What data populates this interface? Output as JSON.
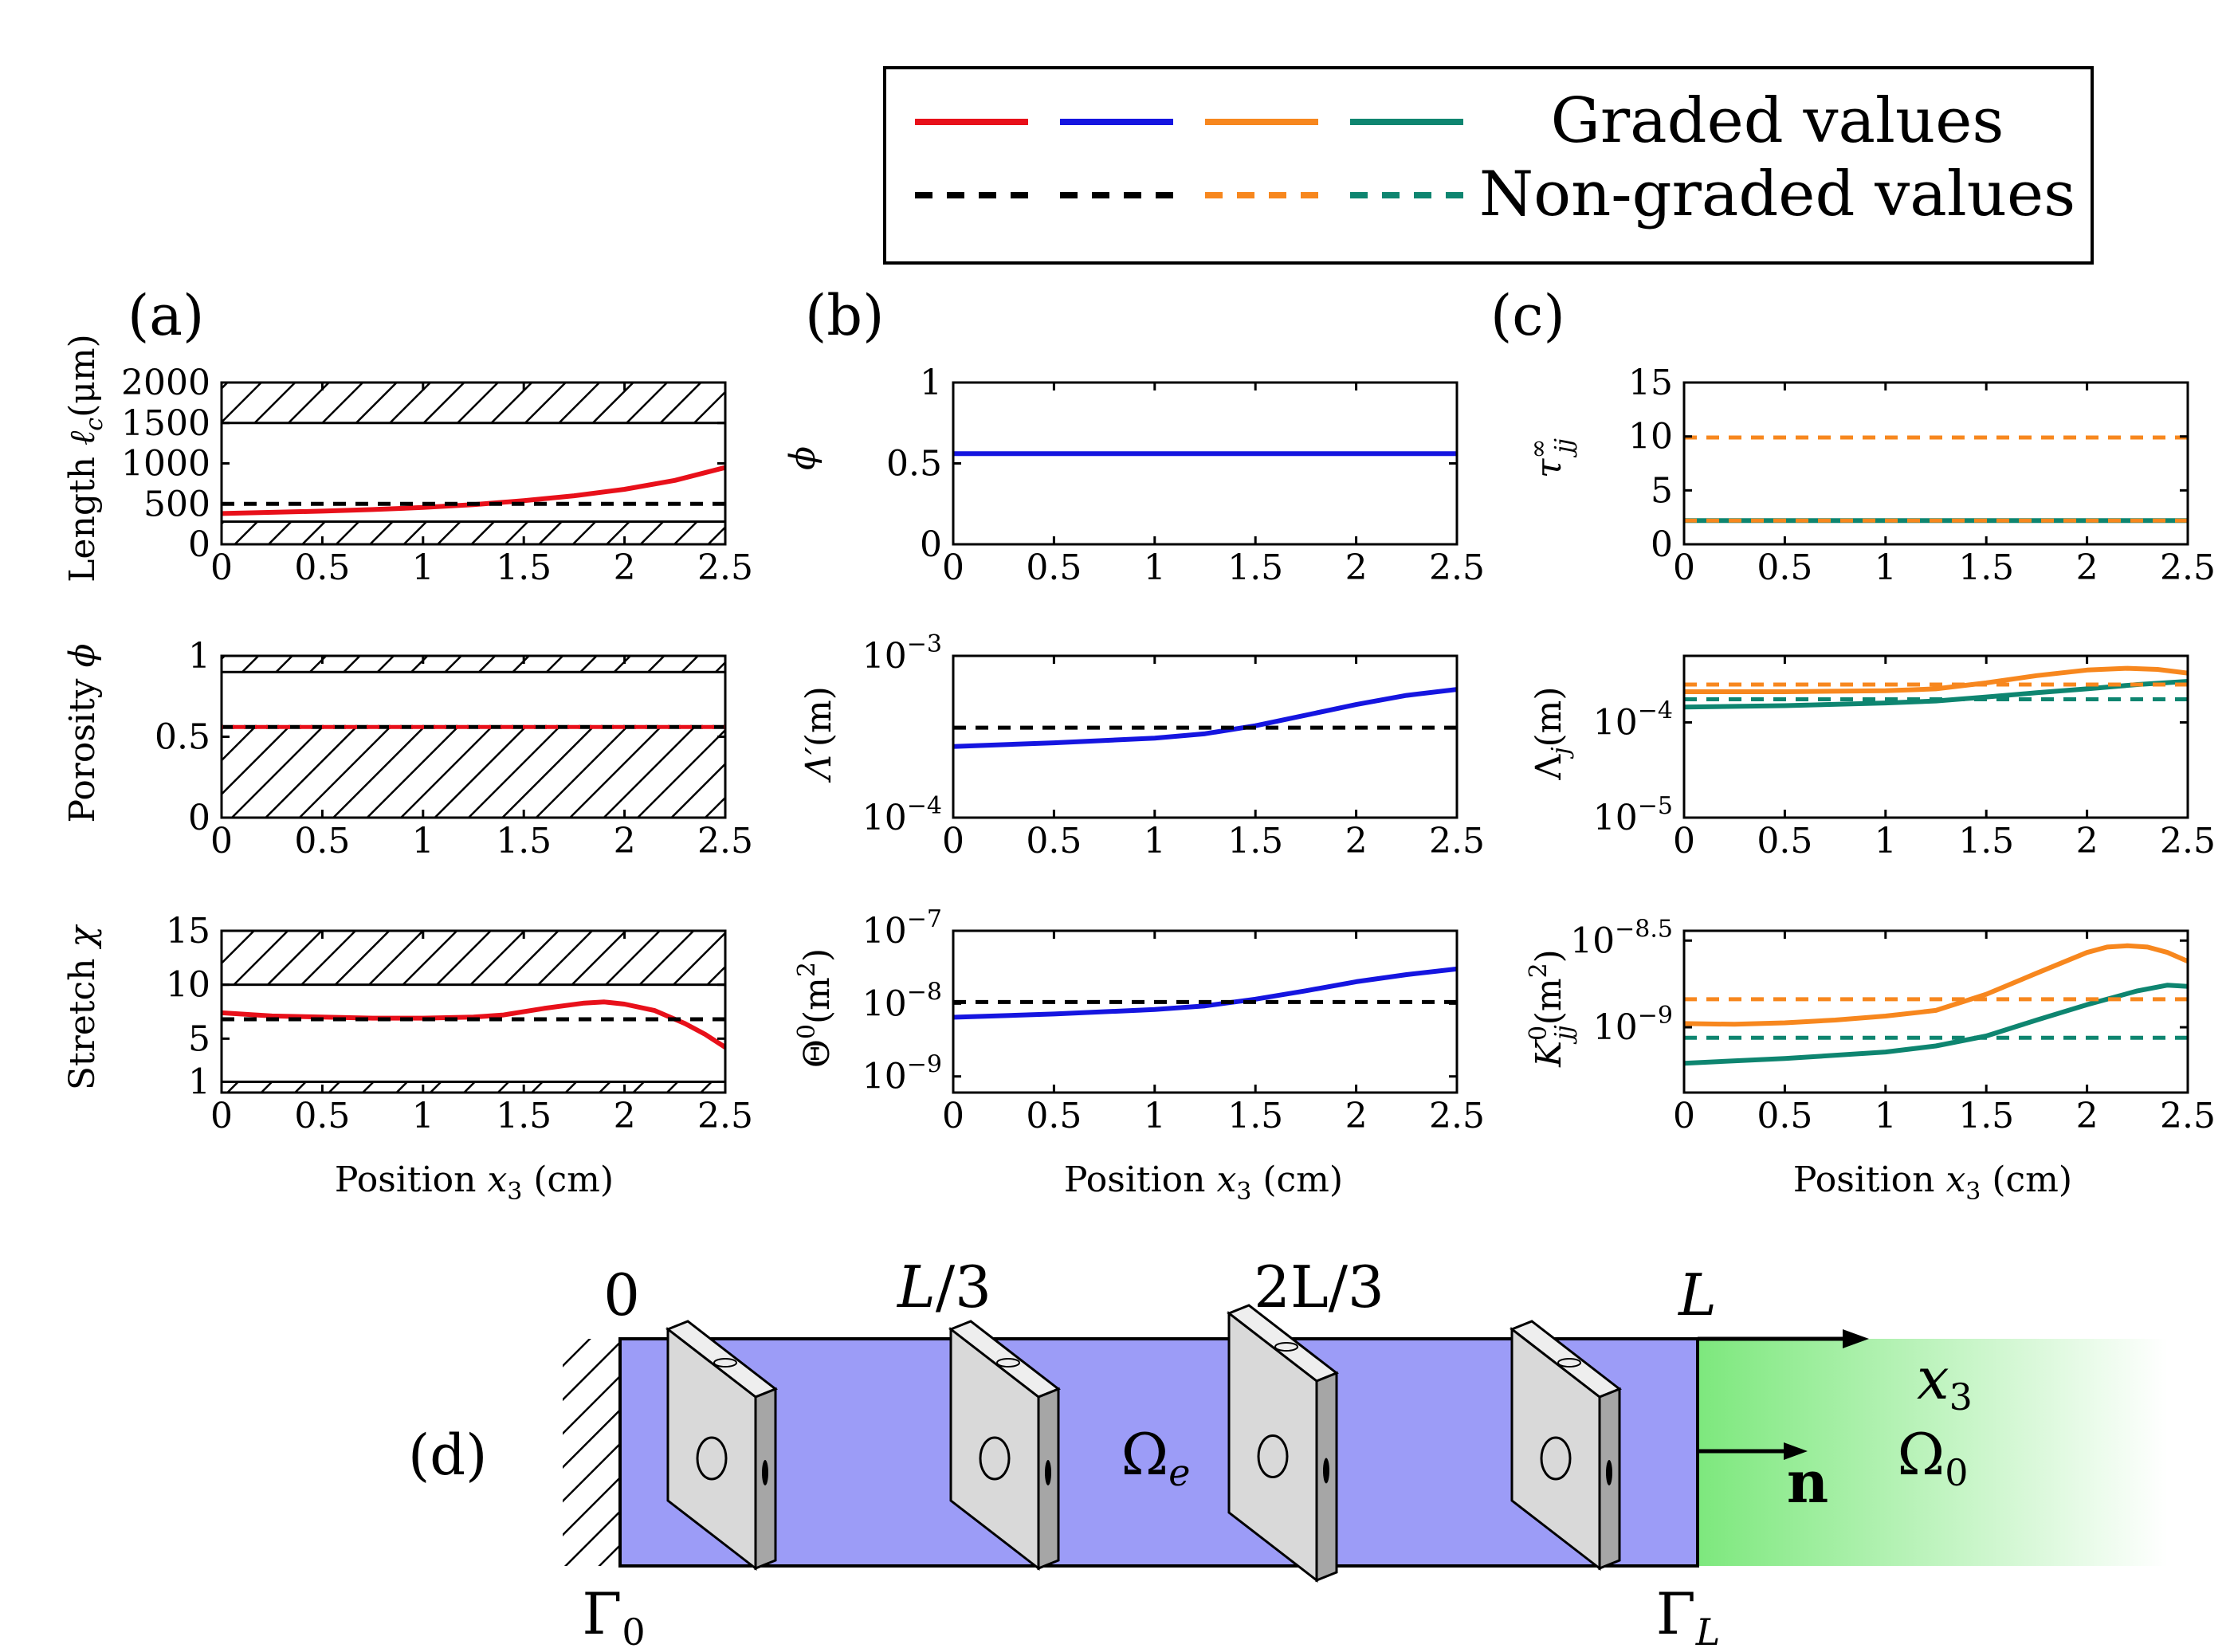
{
  "legend": {
    "graded": "Graded values",
    "nongraded": "Non-graded values",
    "colors": {
      "red": "#e8101a",
      "blue": "#1515e0",
      "orange": "#f7871e",
      "teal": "#0e8570",
      "black": "#000000"
    }
  },
  "panel_labels": {
    "a": "(a)",
    "b": "(b)",
    "c": "(c)",
    "d": "(d)"
  },
  "xaxis_label": {
    "prefix": "Position ",
    "var": "x",
    "sub": "3",
    "suffix": " (cm)"
  },
  "ylabels": {
    "a1": {
      "main": "Length ",
      "sym": "ℓ",
      "sub": "c",
      "unit": "(μm)"
    },
    "a2": {
      "main": "Porosity ",
      "sym": "ϕ"
    },
    "a3": {
      "main": "Stretch ",
      "sym": "χ"
    },
    "b1": {
      "sym": "ϕ"
    },
    "b2": {
      "sym": "Λ′",
      "unit": "(m)"
    },
    "b3": {
      "sym": "Θ",
      "sup": "0",
      "unit": "(m",
      "unit_sup": "2",
      "unit_end": ")"
    },
    "c1": {
      "sym": "τ",
      "sub": "jj",
      "sup": "∞"
    },
    "c2": {
      "sym": "Λ",
      "sub": "j",
      "unit": "(m)"
    },
    "c3": {
      "sym": "K",
      "sub": "jj",
      "sup": "0",
      "unit": "(m",
      "unit_sup": "2",
      "unit_end": ")"
    }
  },
  "chart_data": [
    {
      "id": "a1",
      "type": "line",
      "xlim": [
        0,
        2.5
      ],
      "ylim": [
        0,
        2000
      ],
      "xticks": [
        "0",
        "0.5",
        "1",
        "1.5",
        "2",
        "2.5"
      ],
      "yticks": [
        {
          "v": 0,
          "label": "0"
        },
        {
          "v": 500,
          "label": "500"
        },
        {
          "v": 1000,
          "label": "1000"
        },
        {
          "v": 1500,
          "label": "1500"
        },
        {
          "v": 2000,
          "label": "2000"
        }
      ],
      "hatched_ranges": [
        [
          0,
          280
        ],
        [
          1500,
          2000
        ]
      ],
      "series": [
        {
          "name": "Graded values",
          "color": "red",
          "dash": false,
          "x": [
            0,
            0.25,
            0.5,
            0.75,
            1,
            1.25,
            1.5,
            1.75,
            2,
            2.25,
            2.5
          ],
          "y": [
            380,
            395,
            410,
            430,
            455,
            490,
            540,
            600,
            680,
            790,
            950
          ]
        },
        {
          "name": "Non-graded values",
          "color": "black",
          "dash": true,
          "x": [
            0,
            2.5
          ],
          "y": [
            500,
            500
          ]
        }
      ]
    },
    {
      "id": "a2",
      "type": "line",
      "xlim": [
        0,
        2.5
      ],
      "ylim": [
        0,
        1
      ],
      "xticks": [
        "0",
        "0.5",
        "1",
        "1.5",
        "2",
        "2.5"
      ],
      "yticks": [
        {
          "v": 0,
          "label": "0"
        },
        {
          "v": 0.5,
          "label": "0.5"
        },
        {
          "v": 1,
          "label": "1"
        }
      ],
      "hatched_ranges": [
        [
          0,
          0.56
        ],
        [
          0.9,
          1
        ]
      ],
      "series": [
        {
          "name": "Non-graded values",
          "color": "black",
          "dash": true,
          "x": [
            0,
            2.5
          ],
          "y": [
            0.56,
            0.56
          ]
        },
        {
          "name": "Graded values",
          "color": "red",
          "dash": true,
          "x": [
            0,
            2.5
          ],
          "y": [
            0.56,
            0.56
          ]
        }
      ]
    },
    {
      "id": "a3",
      "type": "line",
      "xlim": [
        0,
        2.5
      ],
      "ylim": [
        0,
        15
      ],
      "xticks": [
        "0",
        "0.5",
        "1",
        "1.5",
        "2",
        "2.5"
      ],
      "yticks": [
        {
          "v": 1,
          "label": "1"
        },
        {
          "v": 5,
          "label": "5"
        },
        {
          "v": 10,
          "label": "10"
        },
        {
          "v": 15,
          "label": "15"
        }
      ],
      "hatched_ranges": [
        [
          0,
          1
        ],
        [
          10,
          15
        ]
      ],
      "series": [
        {
          "name": "Graded values",
          "color": "red",
          "dash": false,
          "x": [
            0,
            0.25,
            0.5,
            0.75,
            1,
            1.25,
            1.4,
            1.6,
            1.8,
            1.9,
            2.0,
            2.15,
            2.3,
            2.4,
            2.5
          ],
          "y": [
            7.4,
            7.1,
            7.0,
            6.9,
            6.9,
            7.0,
            7.2,
            7.8,
            8.3,
            8.4,
            8.2,
            7.6,
            6.4,
            5.4,
            4.2
          ]
        },
        {
          "name": "Non-graded values",
          "color": "black",
          "dash": true,
          "x": [
            0,
            2.5
          ],
          "y": [
            6.8,
            6.8
          ]
        }
      ]
    },
    {
      "id": "b1",
      "type": "line",
      "xlim": [
        0,
        2.5
      ],
      "ylim": [
        0,
        1
      ],
      "xticks": [
        "0",
        "0.5",
        "1",
        "1.5",
        "2",
        "2.5"
      ],
      "yticks": [
        {
          "v": 0,
          "label": "0"
        },
        {
          "v": 0.5,
          "label": "0.5"
        },
        {
          "v": 1,
          "label": "1"
        }
      ],
      "series": [
        {
          "name": "Graded values",
          "color": "blue",
          "dash": false,
          "x": [
            0,
            2.5
          ],
          "y": [
            0.56,
            0.56
          ]
        }
      ]
    },
    {
      "id": "b2",
      "type": "line",
      "scale": "log",
      "xlim": [
        0,
        2.5
      ],
      "ylim": [
        0.0001,
        0.001
      ],
      "xticks": [
        "0",
        "0.5",
        "1",
        "1.5",
        "2",
        "2.5"
      ],
      "yticks": [
        {
          "v": 0.0001,
          "base": "10",
          "exp": "−4"
        },
        {
          "v": 0.001,
          "base": "10",
          "exp": "−3"
        }
      ],
      "series": [
        {
          "name": "Graded values",
          "color": "blue",
          "dash": false,
          "x": [
            0,
            0.5,
            1,
            1.25,
            1.5,
            1.75,
            2,
            2.25,
            2.5
          ],
          "y": [
            0.000275,
            0.00029,
            0.00031,
            0.00033,
            0.00037,
            0.00043,
            0.0005,
            0.00057,
            0.00062
          ]
        },
        {
          "name": "Non-graded values",
          "color": "black",
          "dash": true,
          "x": [
            0,
            2.5
          ],
          "y": [
            0.00036,
            0.00036
          ]
        }
      ]
    },
    {
      "id": "b3",
      "type": "line",
      "scale": "log",
      "xlim": [
        0,
        2.5
      ],
      "ylim": [
        6e-10,
        1e-07
      ],
      "xticks": [
        "0",
        "0.5",
        "1",
        "1.5",
        "2",
        "2.5"
      ],
      "yticks": [
        {
          "v": 1e-09,
          "base": "10",
          "exp": "−9"
        },
        {
          "v": 1e-08,
          "base": "10",
          "exp": "−8"
        },
        {
          "v": 1e-07,
          "base": "10",
          "exp": "−7"
        }
      ],
      "series": [
        {
          "name": "Graded values",
          "color": "blue",
          "dash": false,
          "x": [
            0,
            0.5,
            1,
            1.25,
            1.5,
            1.75,
            2,
            2.25,
            2.5
          ],
          "y": [
            6.5e-09,
            7.2e-09,
            8.3e-09,
            9.3e-09,
            1.15e-08,
            1.5e-08,
            2e-08,
            2.5e-08,
            3e-08
          ]
        },
        {
          "name": "Non-graded values",
          "color": "black",
          "dash": true,
          "x": [
            0,
            2.5
          ],
          "y": [
            1.05e-08,
            1.05e-08
          ]
        }
      ]
    },
    {
      "id": "c1",
      "type": "line",
      "xlim": [
        0,
        2.5
      ],
      "ylim": [
        0,
        15
      ],
      "xticks": [
        "0",
        "0.5",
        "1",
        "1.5",
        "2",
        "2.5"
      ],
      "yticks": [
        {
          "v": 0,
          "label": "0"
        },
        {
          "v": 5,
          "label": "5"
        },
        {
          "v": 10,
          "label": "10"
        },
        {
          "v": 15,
          "label": "15"
        }
      ],
      "series": [
        {
          "name": "Graded values (teal)",
          "color": "teal",
          "dash": false,
          "x": [
            0,
            2.5
          ],
          "y": [
            2.2,
            2.2
          ]
        },
        {
          "name": "Non-graded values (orange)",
          "color": "orange",
          "dash": true,
          "x": [
            0,
            2.5
          ],
          "y": [
            9.9,
            9.9
          ]
        },
        {
          "name": "Non-graded values (orange)",
          "color": "orange",
          "dash": true,
          "x": [
            0,
            2.5
          ],
          "y": [
            2.2,
            2.2
          ]
        }
      ]
    },
    {
      "id": "c2",
      "type": "line",
      "scale": "log",
      "xlim": [
        0,
        2.5
      ],
      "ylim": [
        1e-05,
        0.0005
      ],
      "xticks": [
        "0",
        "0.5",
        "1",
        "1.5",
        "2",
        "2.5"
      ],
      "yticks": [
        {
          "v": 1e-05,
          "base": "10",
          "exp": "−5"
        },
        {
          "v": 0.0001,
          "base": "10",
          "exp": "−4"
        }
      ],
      "series": [
        {
          "name": "Graded values (orange)",
          "color": "orange",
          "dash": false,
          "x": [
            0,
            0.5,
            1,
            1.25,
            1.5,
            1.75,
            2,
            2.2,
            2.35,
            2.5
          ],
          "y": [
            0.00021,
            0.00021,
            0.000215,
            0.000225,
            0.00026,
            0.00031,
            0.000355,
            0.00037,
            0.00036,
            0.00033
          ]
        },
        {
          "name": "Graded values (teal)",
          "color": "teal",
          "dash": false,
          "x": [
            0,
            0.5,
            1,
            1.25,
            1.5,
            1.75,
            2,
            2.25,
            2.5
          ],
          "y": [
            0.000145,
            0.00015,
            0.00016,
            0.000168,
            0.000185,
            0.000205,
            0.000225,
            0.00025,
            0.00027
          ]
        },
        {
          "name": "Non-graded values (orange)",
          "color": "orange",
          "dash": true,
          "x": [
            0,
            2.5
          ],
          "y": [
            0.00025,
            0.00025
          ]
        },
        {
          "name": "Non-graded values (teal)",
          "color": "teal",
          "dash": true,
          "x": [
            0,
            2.5
          ],
          "y": [
            0.000175,
            0.000175
          ]
        }
      ]
    },
    {
      "id": "c3",
      "type": "line",
      "scale": "log",
      "xlim": [
        0,
        2.5
      ],
      "ylim": [
        4.2e-10,
        3.6e-09
      ],
      "xticks": [
        "0",
        "0.5",
        "1",
        "1.5",
        "2",
        "2.5"
      ],
      "yticks": [
        {
          "v": 1e-09,
          "base": "10",
          "exp": "−9"
        },
        {
          "v": 3.162e-09,
          "base": "10",
          "exp": "−8.5"
        }
      ],
      "series": [
        {
          "name": "Graded values (orange)",
          "color": "orange",
          "dash": false,
          "x": [
            0,
            0.25,
            0.5,
            0.75,
            1,
            1.25,
            1.5,
            1.75,
            2,
            2.1,
            2.2,
            2.3,
            2.4,
            2.5
          ],
          "y": [
            1.05e-09,
            1.04e-09,
            1.06e-09,
            1.1e-09,
            1.16e-09,
            1.25e-09,
            1.55e-09,
            2.05e-09,
            2.7e-09,
            2.9e-09,
            2.95e-09,
            2.9e-09,
            2.7e-09,
            2.4e-09
          ]
        },
        {
          "name": "Graded values (teal)",
          "color": "teal",
          "dash": false,
          "x": [
            0,
            0.5,
            1,
            1.25,
            1.5,
            1.75,
            2,
            2.25,
            2.4,
            2.5
          ],
          "y": [
            6.2e-10,
            6.6e-10,
            7.2e-10,
            7.8e-10,
            8.9e-10,
            1.1e-09,
            1.35e-09,
            1.62e-09,
            1.75e-09,
            1.72e-09
          ]
        },
        {
          "name": "Non-graded values (orange)",
          "color": "orange",
          "dash": true,
          "x": [
            0,
            2.5
          ],
          "y": [
            1.45e-09,
            1.45e-09
          ]
        },
        {
          "name": "Non-graded values (teal)",
          "color": "teal",
          "dash": true,
          "x": [
            0,
            2.5
          ],
          "y": [
            8.7e-10,
            8.7e-10
          ]
        }
      ]
    }
  ],
  "diagram": {
    "positions": {
      "zero": "0",
      "l3_a": "L",
      "l3_b": "/3",
      "l23_a": "2L",
      "l23_b": "/3",
      "l": "L"
    },
    "axis": {
      "var": "x",
      "sub": "3"
    },
    "normal": "n",
    "domain_e": {
      "sym": "Ω",
      "sub": "e"
    },
    "domain_0": {
      "sym": "Ω",
      "sub": "0"
    },
    "gamma_0": {
      "sym": "Γ",
      "sub": "0"
    },
    "gamma_L": {
      "sym": "Γ",
      "sub": "L"
    },
    "colors": {
      "tube": "#9c9cf7",
      "air": "#7de87d",
      "plate_face": "#d9d9d9",
      "plate_side": "#a6a6a6"
    }
  }
}
